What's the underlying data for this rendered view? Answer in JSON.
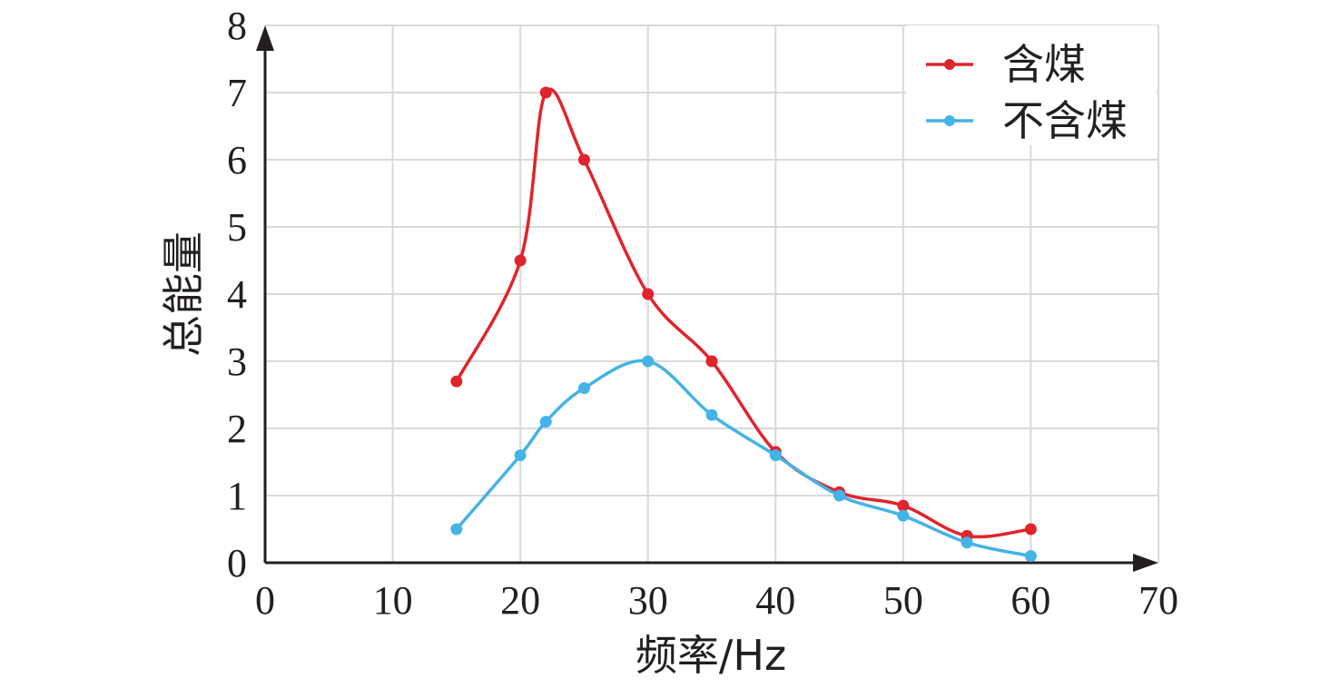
{
  "chart_data": {
    "type": "line",
    "xlabel": "频率/Hz",
    "ylabel": "总能量",
    "xlim": [
      0,
      70
    ],
    "ylim": [
      0,
      8
    ],
    "x_ticks": [
      "0",
      "10",
      "20",
      "30",
      "40",
      "50",
      "60",
      "70"
    ],
    "y_ticks": [
      "0",
      "1",
      "2",
      "3",
      "4",
      "5",
      "6",
      "7",
      "8"
    ],
    "grid": true,
    "legend_position": "top-right",
    "series": [
      {
        "name": "含煤",
        "color": "#e0242b",
        "x": [
          15,
          20,
          22,
          25,
          30,
          35,
          40,
          45,
          50,
          55,
          60
        ],
        "y": [
          2.7,
          4.5,
          7.0,
          6.0,
          4.0,
          3.0,
          1.65,
          1.05,
          0.85,
          0.4,
          0.5
        ]
      },
      {
        "name": "不含煤",
        "color": "#44b3e6",
        "x": [
          15,
          20,
          22,
          25,
          30,
          35,
          40,
          45,
          50,
          55,
          60
        ],
        "y": [
          0.5,
          1.6,
          2.1,
          2.6,
          3.0,
          2.2,
          1.6,
          1.0,
          0.7,
          0.3,
          0.1
        ]
      }
    ]
  }
}
